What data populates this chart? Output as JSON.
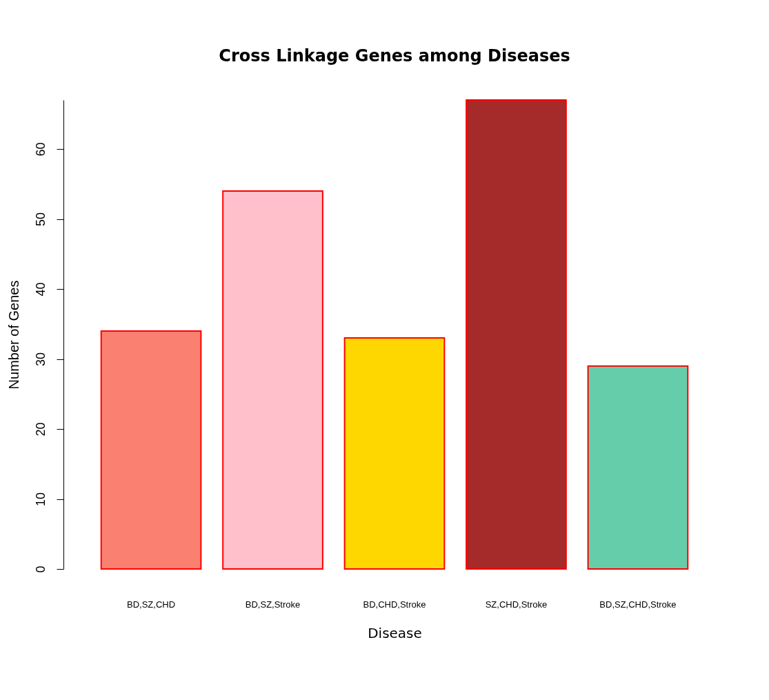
{
  "chart_data": {
    "type": "bar",
    "title": "Cross Linkage Genes among Diseases",
    "xlabel": "Disease",
    "ylabel": "Number of Genes",
    "categories": [
      "BD,SZ,CHD",
      "BD,SZ,Stroke",
      "BD,CHD,Stroke",
      "SZ,CHD,Stroke",
      "BD,SZ,CHD,Stroke"
    ],
    "values": [
      34,
      54,
      33,
      67,
      29
    ],
    "colors": [
      "#fa8072",
      "#ffc0cb",
      "#ffd700",
      "#a52a2a",
      "#66cdaa"
    ],
    "ylim": [
      0,
      67
    ],
    "yticks": [
      0,
      10,
      20,
      30,
      40,
      50,
      60
    ],
    "grid": false,
    "legend": false
  }
}
